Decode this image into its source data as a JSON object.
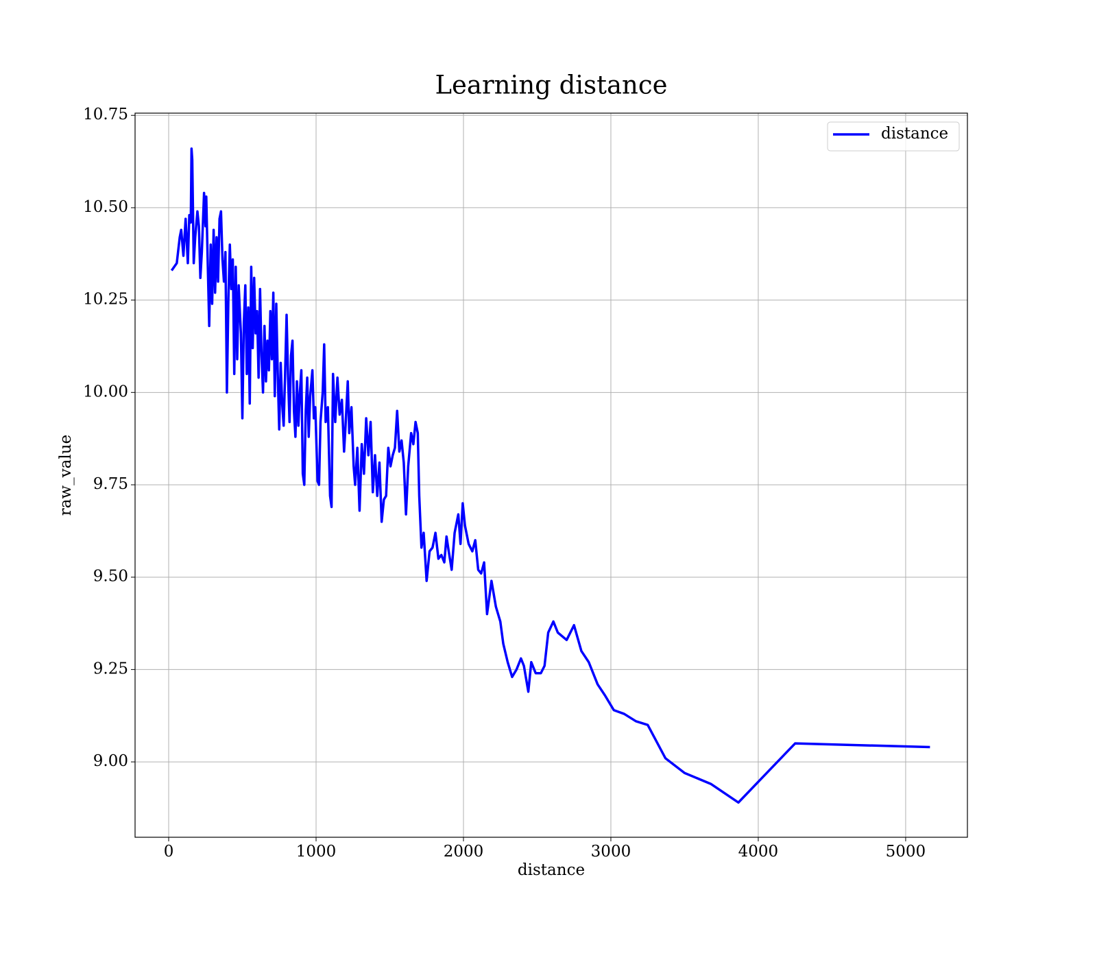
{
  "chart_data": {
    "type": "line",
    "title": "Learning distance",
    "x_label": "distance",
    "y_label": "raw_value",
    "x": [
      20,
      55,
      75,
      85,
      100,
      115,
      130,
      140,
      150,
      155,
      160,
      170,
      180,
      195,
      205,
      215,
      225,
      240,
      250,
      255,
      265,
      275,
      285,
      295,
      305,
      315,
      325,
      335,
      345,
      355,
      365,
      375,
      385,
      395,
      405,
      415,
      425,
      435,
      445,
      455,
      465,
      475,
      490,
      500,
      510,
      520,
      530,
      540,
      550,
      560,
      570,
      580,
      590,
      600,
      610,
      620,
      630,
      640,
      650,
      660,
      670,
      680,
      690,
      700,
      710,
      720,
      730,
      740,
      750,
      760,
      770,
      780,
      790,
      800,
      810,
      820,
      830,
      840,
      850,
      860,
      870,
      880,
      890,
      900,
      910,
      920,
      930,
      940,
      950,
      960,
      975,
      985,
      995,
      1010,
      1020,
      1030,
      1045,
      1055,
      1065,
      1080,
      1095,
      1105,
      1115,
      1130,
      1145,
      1160,
      1175,
      1190,
      1200,
      1215,
      1225,
      1240,
      1255,
      1265,
      1280,
      1295,
      1310,
      1325,
      1340,
      1355,
      1370,
      1385,
      1400,
      1415,
      1430,
      1445,
      1460,
      1475,
      1490,
      1505,
      1520,
      1535,
      1550,
      1565,
      1580,
      1595,
      1610,
      1625,
      1645,
      1660,
      1675,
      1690,
      1700,
      1715,
      1730,
      1750,
      1770,
      1790,
      1810,
      1830,
      1850,
      1870,
      1885,
      1900,
      1920,
      1940,
      1965,
      1980,
      1995,
      2010,
      2035,
      2060,
      2080,
      2100,
      2120,
      2140,
      2160,
      2190,
      2220,
      2250,
      2270,
      2300,
      2330,
      2360,
      2390,
      2410,
      2440,
      2460,
      2490,
      2525,
      2550,
      2575,
      2610,
      2640,
      2700,
      2750,
      2800,
      2850,
      2910,
      2960,
      3020,
      3090,
      3170,
      3250,
      3370,
      3500,
      3680,
      3865,
      4250,
      5165
    ],
    "series": [
      {
        "name": "distance",
        "color": "#0000ff",
        "values": [
          10.33,
          10.35,
          10.42,
          10.44,
          10.37,
          10.47,
          10.35,
          10.48,
          10.46,
          10.66,
          10.63,
          10.35,
          10.42,
          10.49,
          10.45,
          10.31,
          10.38,
          10.54,
          10.45,
          10.53,
          10.35,
          10.18,
          10.4,
          10.24,
          10.44,
          10.27,
          10.42,
          10.3,
          10.47,
          10.49,
          10.36,
          10.3,
          10.38,
          10.0,
          10.25,
          10.4,
          10.28,
          10.36,
          10.05,
          10.34,
          10.09,
          10.29,
          10.16,
          9.93,
          10.19,
          10.29,
          10.05,
          10.23,
          9.97,
          10.34,
          10.12,
          10.31,
          10.16,
          10.22,
          10.04,
          10.28,
          10.1,
          10.0,
          10.18,
          10.03,
          10.14,
          10.06,
          10.22,
          10.09,
          10.27,
          9.99,
          10.24,
          10.05,
          9.9,
          10.08,
          9.97,
          9.91,
          10.05,
          10.21,
          10.04,
          9.92,
          10.1,
          10.14,
          9.95,
          9.88,
          10.03,
          9.91,
          10.0,
          10.06,
          9.78,
          9.75,
          9.95,
          10.04,
          9.88,
          9.99,
          10.06,
          9.93,
          9.96,
          9.76,
          9.75,
          9.92,
          10.0,
          10.13,
          9.92,
          9.96,
          9.72,
          9.69,
          10.05,
          9.92,
          10.04,
          9.94,
          9.98,
          9.84,
          9.91,
          10.03,
          9.89,
          9.96,
          9.8,
          9.75,
          9.85,
          9.68,
          9.86,
          9.78,
          9.93,
          9.83,
          9.92,
          9.73,
          9.83,
          9.72,
          9.81,
          9.65,
          9.71,
          9.72,
          9.85,
          9.8,
          9.83,
          9.85,
          9.95,
          9.84,
          9.87,
          9.81,
          9.67,
          9.8,
          9.89,
          9.86,
          9.92,
          9.89,
          9.72,
          9.58,
          9.62,
          9.49,
          9.57,
          9.58,
          9.62,
          9.55,
          9.56,
          9.54,
          9.61,
          9.57,
          9.52,
          9.62,
          9.67,
          9.59,
          9.7,
          9.64,
          9.59,
          9.57,
          9.6,
          9.52,
          9.51,
          9.54,
          9.4,
          9.49,
          9.42,
          9.38,
          9.32,
          9.27,
          9.23,
          9.25,
          9.28,
          9.26,
          9.19,
          9.27,
          9.24,
          9.24,
          9.26,
          9.35,
          9.38,
          9.35,
          9.33,
          9.37,
          9.3,
          9.27,
          9.21,
          9.18,
          9.14,
          9.13,
          9.11,
          9.1,
          9.01,
          8.97,
          8.94,
          8.89,
          9.05,
          9.04
        ]
      }
    ],
    "xlim": [
      -228,
      5419
    ],
    "ylim": [
      8.796,
      10.756
    ],
    "xticks": [
      0,
      1000,
      2000,
      3000,
      4000,
      5000
    ],
    "yticks": [
      {
        "value": 9,
        "label": "9.00"
      },
      9.25,
      {
        "value": 9.5,
        "label": "9.50"
      },
      9.75,
      {
        "value": 10,
        "label": "10.00"
      },
      10.25,
      {
        "value": 10.5,
        "label": "10.50"
      },
      10.75
    ],
    "grid": true,
    "legend": "upper right"
  }
}
